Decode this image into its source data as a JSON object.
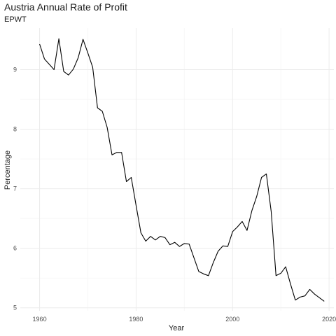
{
  "chart_data": {
    "type": "line",
    "title": "Austria Annual Rate of Profit",
    "subtitle": "EPWT",
    "xlabel": "Year",
    "ylabel": "Percentage",
    "xlim": [
      1956,
      2021
    ],
    "ylim": [
      4.95,
      9.7
    ],
    "x_ticks": [
      1960,
      1980,
      2000,
      2020
    ],
    "y_ticks": [
      5,
      6,
      7,
      8,
      9
    ],
    "grid": true,
    "line_color": "#000000",
    "grid_major_color": "#ebebeb",
    "grid_minor_color": "#f5f5f5",
    "series": [
      {
        "x": [
          1960,
          1961,
          1962,
          1963,
          1964,
          1965,
          1966,
          1967,
          1968,
          1969,
          1970,
          1971,
          1972,
          1973,
          1974,
          1975,
          1976,
          1977,
          1978,
          1979,
          1980,
          1981,
          1982,
          1983,
          1984,
          1985,
          1986,
          1987,
          1988,
          1989,
          1990,
          1991,
          1992,
          1993,
          1994,
          1995,
          1996,
          1997,
          1998,
          1999,
          2000,
          2001,
          2002,
          2003,
          2004,
          2005,
          2006,
          2007,
          2008,
          2009,
          2010,
          2011,
          2012,
          2013,
          2014,
          2015,
          2016,
          2017,
          2018,
          2019
        ],
        "y": [
          9.43,
          9.18,
          9.09,
          9.0,
          9.52,
          8.97,
          8.91,
          9.01,
          9.2,
          9.51,
          9.28,
          9.04,
          8.36,
          8.3,
          8.03,
          7.57,
          7.61,
          7.61,
          7.12,
          7.19,
          6.72,
          6.26,
          6.12,
          6.2,
          6.14,
          6.2,
          6.18,
          6.06,
          6.1,
          6.03,
          6.08,
          6.07,
          5.84,
          5.61,
          5.57,
          5.54,
          5.76,
          5.95,
          6.04,
          6.03,
          6.28,
          6.36,
          6.45,
          6.3,
          6.63,
          6.87,
          7.19,
          7.25,
          6.62,
          5.54,
          5.58,
          5.69,
          5.4,
          5.13,
          5.18,
          5.2,
          5.31,
          5.23,
          5.17,
          5.11
        ]
      }
    ]
  }
}
